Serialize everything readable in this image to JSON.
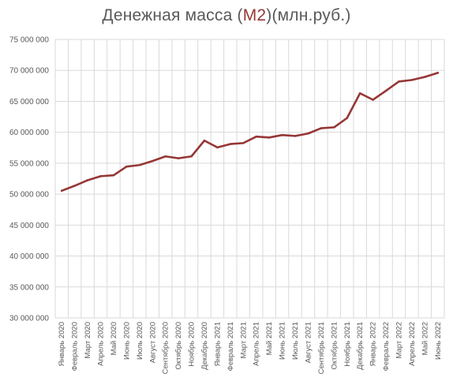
{
  "chart_data": {
    "type": "line",
    "title_parts": [
      "Денежная масса (",
      "M2",
      ")(млн.руб.)"
    ],
    "xlabel": "",
    "ylabel": "",
    "ylim": [
      30000000,
      75000000
    ],
    "yticks": [
      30000000,
      35000000,
      40000000,
      45000000,
      50000000,
      55000000,
      60000000,
      65000000,
      70000000,
      75000000
    ],
    "ytick_labels": [
      "30 000 000",
      "35 000 000",
      "40 000 000",
      "45 000 000",
      "50 000 000",
      "55 000 000",
      "60 000 000",
      "65 000 000",
      "70 000 000",
      "75 000 000"
    ],
    "grid": true,
    "line_color": "#953735",
    "grid_color": "#d9d9d9",
    "categories": [
      "Январь 2020",
      "Февраль 2020",
      "Март 2020",
      "Апрель 2020",
      "Май 2020",
      "Июнь 2020",
      "Июль 2020",
      "Август 2020",
      "Сентябрь 2020",
      "Октябрь 2020",
      "Ноябрь 2020",
      "Декабрь 2020",
      "Январь 2021",
      "Февраль 2021",
      "Март 2021",
      "Апрель 2021",
      "Май 2021",
      "Июнь 2021",
      "Июль 2021",
      "Август 2021",
      "Сентябрь 2021",
      "Октябрь 2021",
      "Ноябрь 2021",
      "Декабрь 2021",
      "Январь 2022",
      "Февраль 2022",
      "Март 2022",
      "Апрель 2022",
      "Май 2022",
      "Июнь 2022"
    ],
    "series": [
      {
        "values": [
          50550000,
          51350000,
          52250000,
          52900000,
          53050000,
          54450000,
          54700000,
          55350000,
          56100000,
          55800000,
          56100000,
          58650000,
          57550000,
          58100000,
          58250000,
          59300000,
          59150000,
          59550000,
          59400000,
          59800000,
          60650000,
          60800000,
          62300000,
          66300000,
          65250000,
          66700000,
          68200000,
          68450000,
          68950000,
          69600000
        ]
      }
    ]
  }
}
